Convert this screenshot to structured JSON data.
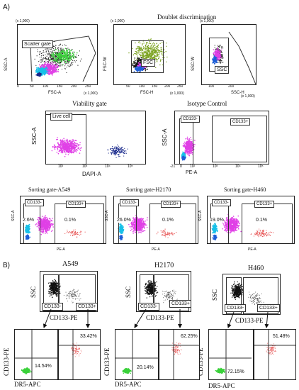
{
  "panel_a": {
    "label": "A)",
    "row1": {
      "doublet_title": "Doublet discrimination",
      "plot1": {
        "gate_label": "Scatter gate",
        "ylabel": "SSC-A",
        "xlabel": "FSC-A",
        "yscale": "(x 1,000)",
        "xscale": "(x 1,000)",
        "ticks": [
          "0",
          "50",
          "100",
          "150",
          "200",
          "250"
        ]
      },
      "plot2": {
        "gate_label": "FSC",
        "ylabel": "FSC-W",
        "xlabel": "FSC-H",
        "yscale": "(x 1,000)",
        "xscale": "(x 1,000)",
        "ticks": [
          "0",
          "50",
          "100",
          "150",
          "200",
          "250"
        ]
      },
      "plot3": {
        "gate_label": "SSC",
        "ylabel": "SSC-W",
        "xlabel": "SSC-H",
        "yscale": "(x 1,000)",
        "xscale": "(x 1,000)",
        "ticks": [
          "0",
          "50",
          "100",
          "150",
          "200",
          "250"
        ]
      }
    },
    "row2": {
      "viability": {
        "title": "Viability gate",
        "gate_label": "Live cell",
        "ylabel": "SSC-A",
        "xlabel": "DAPI-A",
        "ticks": [
          "10²",
          "10³",
          "10⁴",
          "10⁵"
        ]
      },
      "isotype": {
        "title": "Isotype Control",
        "gate_neg": "CD133-",
        "gate_pos": "CD133+",
        "ylabel": "SSC-A",
        "xlabel": "PE-A",
        "ticks": [
          "-21",
          "0",
          "10²",
          "10³",
          "10⁴",
          "10⁵"
        ]
      }
    },
    "row3": [
      {
        "title": "Sorting gate-A549",
        "neg_label": "CD133-",
        "pos_label": "CD133+",
        "neg_pct": "2.6%",
        "pos_pct": "0.1%",
        "ylabel": "SSC-A",
        "xlabel": "PE-A"
      },
      {
        "title": "Sorting gate-H2170",
        "neg_label": "CD133-",
        "pos_label": "CD133+",
        "neg_pct": "26.0%",
        "pos_pct": "0.1%",
        "ylabel": "SSC-A",
        "xlabel": "PE-A"
      },
      {
        "title": "Sorting gate-H460",
        "neg_label": "CD133-",
        "pos_label": "CD133+",
        "neg_pct": "19.0%",
        "pos_pct": "0.1%",
        "ylabel": "SSC-A",
        "xlabel": "PE-A"
      }
    ]
  },
  "panel_b": {
    "label": "B)",
    "columns": [
      {
        "title": "A549",
        "ylabel": "SSC",
        "xlabel": "CD133-PE",
        "neg": "CD133-",
        "pos": "CD133+",
        "neg_dr5_pct": "14.54%",
        "pos_dr5_pct": "33.42%"
      },
      {
        "title": "H2170",
        "ylabel": "SSC",
        "xlabel": "CD133-PE",
        "neg": "CD133-",
        "pos": "CD133+",
        "neg_dr5_pct": "20.14%",
        "pos_dr5_pct": "62.25%"
      },
      {
        "title": "H460",
        "ylabel": "SSC",
        "xlabel": "CD133-PE",
        "neg": "CD133-",
        "pos": "CD133+",
        "neg_dr5_pct": "72.15%",
        "pos_dr5_pct": "51.48%"
      }
    ],
    "dr5_ylabel": "CD133-PE",
    "dr5_xlabel": "DR5-APC"
  },
  "colors": {
    "magenta": "#e040e6",
    "blue": "#1e5fd8",
    "green": "#3ad13a",
    "cyan": "#18c0e8",
    "navy": "#1a2a8c",
    "olive": "#7aa21e",
    "red_dots": "#e85a5a"
  }
}
